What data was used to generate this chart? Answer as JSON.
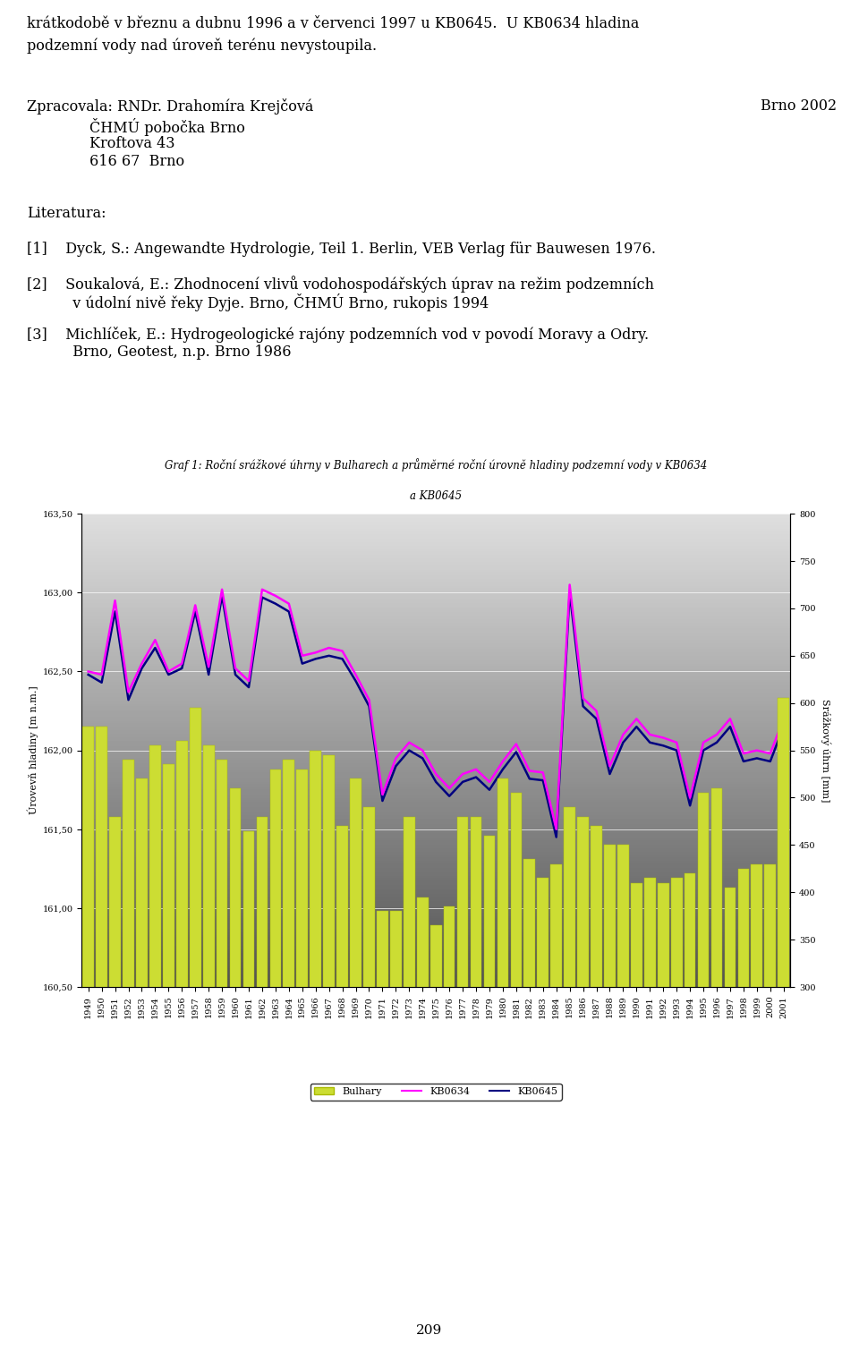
{
  "title_line1": "Graf 1: Roční srážkové úhrny v Bulharech a průměrné roční úrovně hladiny podzemní vody v KB0634",
  "title_line2": "a KB0645",
  "ylabel_left": "Úrovevň hladiny [m n.m.]",
  "ylabel_right": "Srážkový úhrn [mm]",
  "ylim_left": [
    160.5,
    163.5
  ],
  "ylim_right": [
    300,
    800
  ],
  "yticks_left": [
    160.5,
    161.0,
    161.5,
    162.0,
    162.5,
    163.0,
    163.5
  ],
  "yticks_right": [
    300,
    350,
    400,
    450,
    500,
    550,
    600,
    650,
    700,
    750,
    800
  ],
  "years": [
    1949,
    1950,
    1951,
    1952,
    1953,
    1954,
    1955,
    1956,
    1957,
    1958,
    1959,
    1960,
    1961,
    1962,
    1963,
    1964,
    1965,
    1966,
    1967,
    1968,
    1969,
    1970,
    1971,
    1972,
    1973,
    1974,
    1975,
    1976,
    1977,
    1978,
    1979,
    1980,
    1981,
    1982,
    1983,
    1984,
    1985,
    1986,
    1987,
    1988,
    1989,
    1990,
    1991,
    1992,
    1993,
    1994,
    1995,
    1996,
    1997,
    1998,
    1999,
    2000,
    2001
  ],
  "bulhary": [
    575,
    575,
    480,
    540,
    520,
    555,
    535,
    560,
    595,
    555,
    540,
    510,
    465,
    480,
    530,
    540,
    530,
    550,
    545,
    470,
    520,
    490,
    380,
    380,
    480,
    395,
    365,
    385,
    480,
    480,
    460,
    520,
    505,
    435,
    415,
    430,
    490,
    480,
    470,
    450,
    450,
    410,
    415,
    410,
    415,
    420,
    505,
    510,
    405,
    425,
    430,
    430,
    605
  ],
  "kb0634": [
    162.5,
    162.48,
    162.95,
    162.37,
    162.55,
    162.7,
    162.5,
    162.55,
    162.92,
    162.53,
    163.02,
    162.52,
    162.44,
    163.02,
    162.98,
    162.93,
    162.6,
    162.62,
    162.65,
    162.63,
    162.48,
    162.32,
    161.72,
    161.95,
    162.05,
    162.0,
    161.85,
    161.76,
    161.85,
    161.88,
    161.8,
    161.93,
    162.04,
    161.87,
    161.86,
    161.5,
    163.05,
    162.33,
    162.25,
    161.9,
    162.1,
    162.2,
    162.1,
    162.08,
    162.05,
    161.7,
    162.05,
    162.1,
    162.2,
    161.98,
    162.0,
    161.98,
    162.2
  ],
  "kb0645": [
    162.48,
    162.43,
    162.88,
    162.32,
    162.52,
    162.65,
    162.48,
    162.52,
    162.88,
    162.48,
    162.98,
    162.48,
    162.4,
    162.97,
    162.93,
    162.88,
    162.55,
    162.58,
    162.6,
    162.58,
    162.44,
    162.28,
    161.68,
    161.9,
    162.0,
    161.95,
    161.8,
    161.71,
    161.8,
    161.83,
    161.75,
    161.88,
    161.99,
    161.82,
    161.81,
    161.45,
    163.0,
    162.28,
    162.2,
    161.85,
    162.05,
    162.15,
    162.05,
    162.03,
    162.0,
    161.65,
    162.0,
    162.05,
    162.15,
    161.93,
    161.95,
    161.93,
    162.15
  ],
  "bar_color": "#CCDD33",
  "bar_edge_color": "#AABB00",
  "kb0634_color": "#FF00FF",
  "kb0645_color": "#000080",
  "bg_color_top": "#D8D8D8",
  "bg_color_bottom": "#A8A8A8",
  "text_color": "#000000",
  "page_bg": "#FFFFFF",
  "title_fontsize": 8.5,
  "axis_fontsize": 8,
  "tick_fontsize": 7,
  "legend_fontsize": 8,
  "header_text1": "krátkodobě v březnu a dubnu 1996 a v červenci 1997 u KB0645.  U KB0634 hladina",
  "header_text2": "podzemní vody nad úroveň terénu nevystoupila.",
  "zprac_label": "Zpracovala: RNDr. Drahomíra Krejčová",
  "addr1": "ČHMÚ pobočka Brno",
  "addr2": "Kroftova 43",
  "addr3": "616 67  Brno",
  "brno_year": "Brno 2002",
  "lit_header": "Literatura:",
  "lit1": "[1]    Dyck, S.: Angewandte Hydrologie, Teil 1. Berlin, VEB Verlag für Bauwesen 1976.",
  "lit2a": "[2]    Soukalová, E.: Zhodnocení vlivů vodohospodářských úprav na režim podzemních",
  "lit2b": "          v údolní nivě řeky Dyje. Brno, ČHMÚ Brno, rukopis 1994",
  "lit3a": "[3]    Michlíček, E.: Hydrogeologické rajóny podzemních vod v povodí Moravy a Odry.",
  "lit3b": "          Brno, Geotest, n.p. Brno 1986",
  "page_number": "209"
}
